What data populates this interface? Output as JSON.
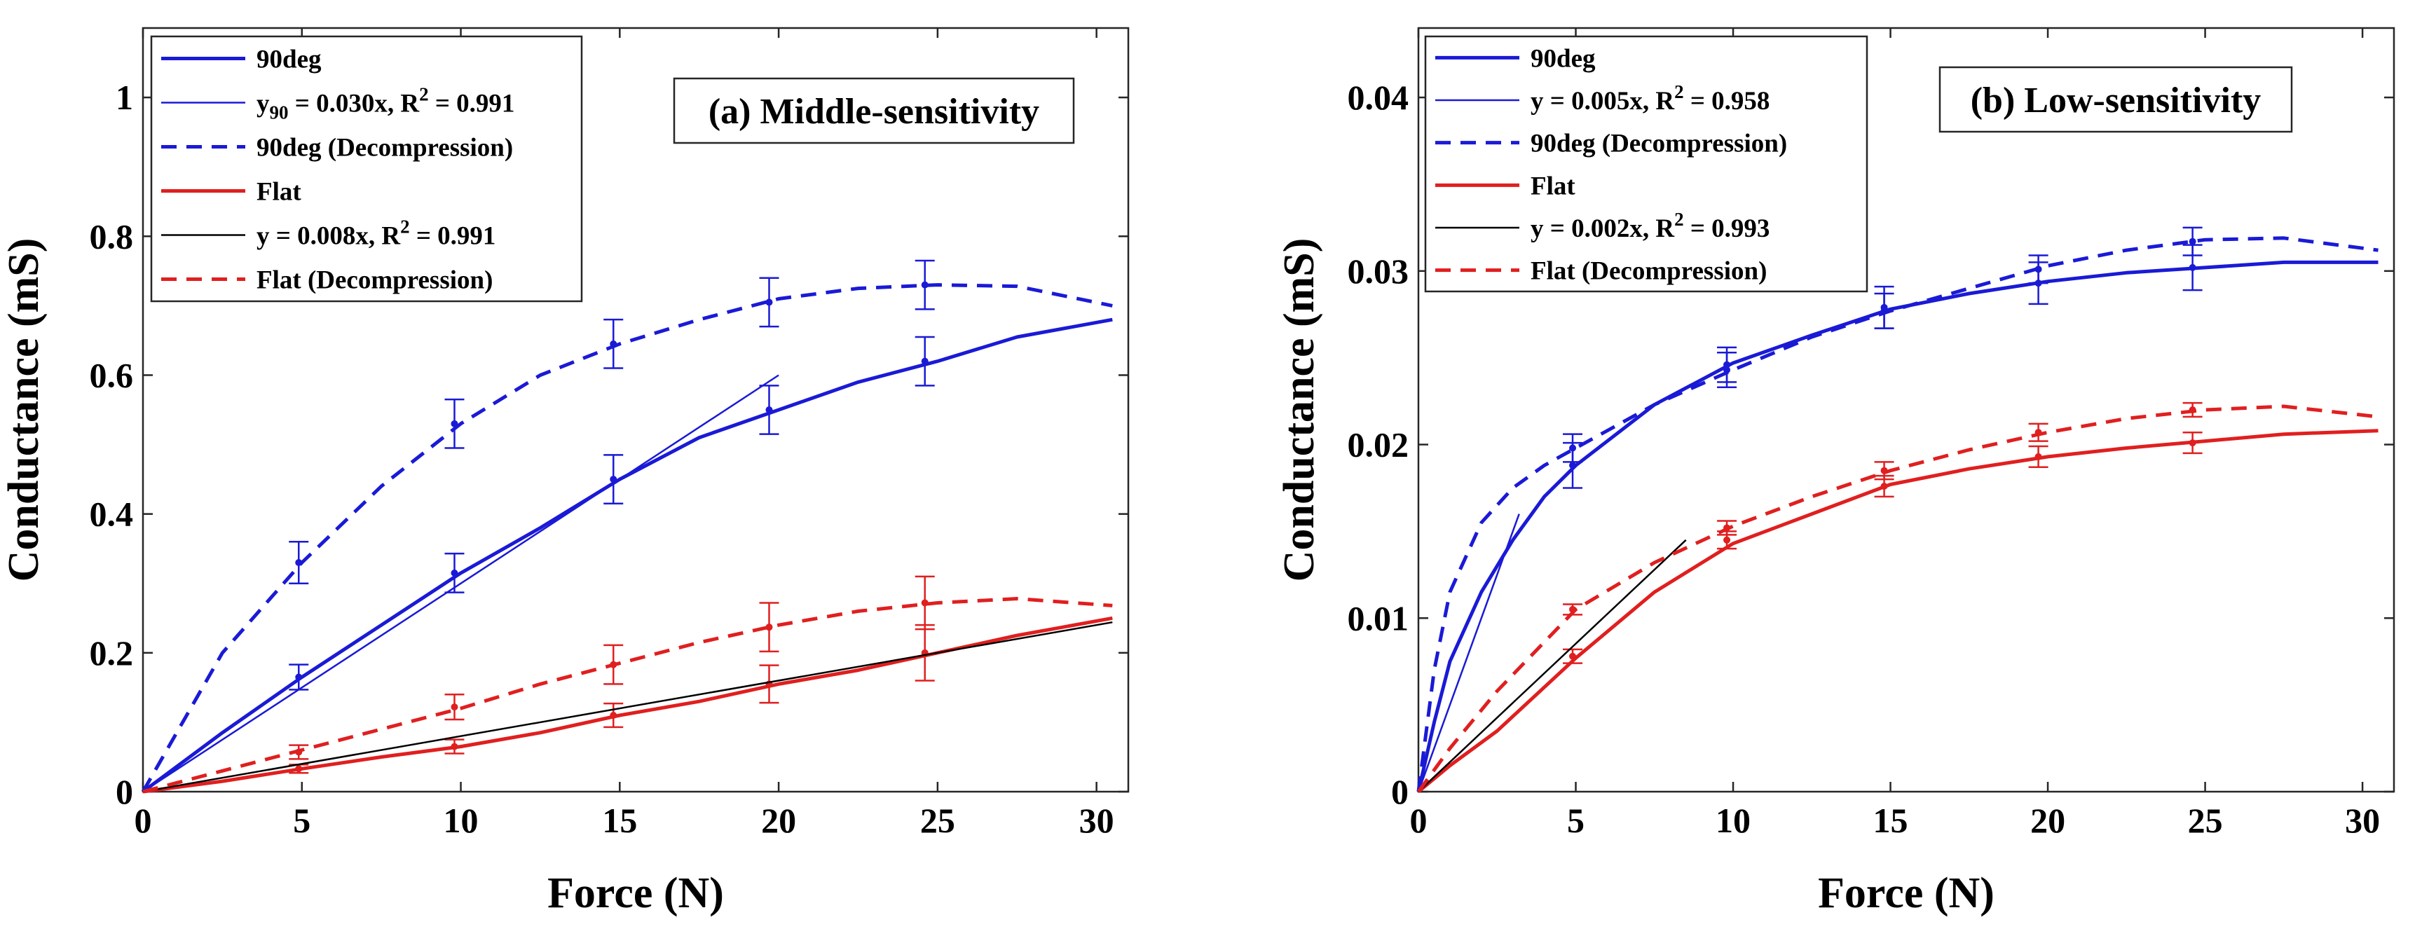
{
  "chart_data": [
    {
      "type": "line",
      "title": "(a) Middle-sensitivity",
      "xlabel": "Force (N)",
      "ylabel": "Conductance (mS)",
      "xlim": [
        0,
        31
      ],
      "ylim": [
        0,
        1.1
      ],
      "xticks": [
        0,
        5,
        10,
        15,
        20,
        25,
        30
      ],
      "yticks": [
        0,
        0.2,
        0.4,
        0.6,
        0.8,
        1
      ],
      "xtick_labels": [
        "0",
        "5",
        "10",
        "15",
        "20",
        "25",
        "30"
      ],
      "ytick_labels": [
        "0",
        "0.2",
        "0.4",
        "0.6",
        "0.8",
        "1"
      ],
      "grid": false,
      "legend_position": "top-left",
      "series": [
        {
          "name": "90deg",
          "color": "#1a1ad6",
          "dash": "solid",
          "x": [
            0,
            2.5,
            5,
            7.5,
            10,
            12.5,
            15,
            17.5,
            20,
            22.5,
            25,
            27.5,
            30.5
          ],
          "y": [
            0,
            0.085,
            0.165,
            0.24,
            0.315,
            0.38,
            0.45,
            0.51,
            0.55,
            0.59,
            0.62,
            0.655,
            0.68
          ],
          "markers": {
            "x": [
              4.9,
              9.8,
              14.8,
              19.7,
              24.6
            ],
            "y": [
              0.165,
              0.315,
              0.45,
              0.55,
              0.62
            ],
            "err": [
              0.018,
              0.028,
              0.035,
              0.035,
              0.035
            ]
          }
        },
        {
          "name": "y_90 = 0.030x, R^2 = 0.991",
          "legend_text": "= 0.030x, R",
          "legend_prefix": "y",
          "legend_sub": "90",
          "legend_sup": "2",
          "legend_suffix": " = 0.991",
          "color": "#1a1ad6",
          "dash": "solid",
          "thin": true,
          "x": [
            0,
            20
          ],
          "y": [
            0,
            0.6
          ]
        },
        {
          "name": "90deg (Decompression)",
          "color": "#1a1ad6",
          "dash": "dashed",
          "x": [
            0,
            2.5,
            5,
            7.5,
            10,
            12.5,
            15,
            17.5,
            20,
            22.5,
            25,
            27.5,
            30.5
          ],
          "y": [
            0,
            0.2,
            0.33,
            0.44,
            0.53,
            0.6,
            0.645,
            0.68,
            0.71,
            0.725,
            0.73,
            0.728,
            0.7
          ],
          "markers": {
            "x": [
              4.9,
              9.8,
              14.8,
              19.7,
              24.6
            ],
            "y": [
              0.33,
              0.53,
              0.645,
              0.705,
              0.73
            ],
            "err": [
              0.03,
              0.035,
              0.035,
              0.035,
              0.035
            ]
          }
        },
        {
          "name": "Flat",
          "color": "#e01f1f",
          "dash": "solid",
          "x": [
            0,
            2.5,
            5,
            7.5,
            10,
            12.5,
            15,
            17.5,
            20,
            22.5,
            25,
            27.5,
            30.5
          ],
          "y": [
            0,
            0.015,
            0.033,
            0.05,
            0.065,
            0.085,
            0.11,
            0.13,
            0.155,
            0.175,
            0.2,
            0.225,
            0.25
          ],
          "markers": {
            "x": [
              4.9,
              9.8,
              14.8,
              19.7,
              24.6
            ],
            "y": [
              0.033,
              0.065,
              0.11,
              0.155,
              0.2
            ],
            "err": [
              0.006,
              0.01,
              0.017,
              0.027,
              0.04
            ]
          }
        },
        {
          "name": "y = 0.008x, R^2 = 0.991",
          "legend_text": "y = 0.008x, R",
          "legend_sup": "2",
          "legend_suffix": " = 0.991",
          "color": "#000000",
          "dash": "solid",
          "thin": true,
          "x": [
            0,
            30.5
          ],
          "y": [
            0,
            0.244
          ]
        },
        {
          "name": "Flat (Decompression)",
          "color": "#e01f1f",
          "dash": "dashed",
          "x": [
            0,
            2.5,
            5,
            7.5,
            10,
            12.5,
            15,
            17.5,
            20,
            22.5,
            25,
            27.5,
            30.5
          ],
          "y": [
            0,
            0.03,
            0.06,
            0.09,
            0.12,
            0.155,
            0.185,
            0.215,
            0.24,
            0.26,
            0.272,
            0.278,
            0.268
          ],
          "markers": {
            "x": [
              4.9,
              9.8,
              14.8,
              19.7,
              24.6
            ],
            "y": [
              0.057,
              0.122,
              0.183,
              0.237,
              0.272
            ],
            "err": [
              0.01,
              0.018,
              0.028,
              0.035,
              0.038
            ]
          }
        }
      ]
    },
    {
      "type": "line",
      "title": "(b) Low-sensitivity",
      "xlabel": "Force (N)",
      "ylabel": "Conductance (mS)",
      "xlim": [
        0,
        31
      ],
      "ylim": [
        0,
        0.044
      ],
      "xticks": [
        0,
        5,
        10,
        15,
        20,
        25,
        30
      ],
      "yticks": [
        0,
        0.01,
        0.02,
        0.03,
        0.04
      ],
      "xtick_labels": [
        "0",
        "5",
        "10",
        "15",
        "20",
        "25",
        "30"
      ],
      "ytick_labels": [
        "0",
        "0.01",
        "0.02",
        "0.03",
        "0.04"
      ],
      "grid": false,
      "legend_position": "top-left",
      "series": [
        {
          "name": "90deg",
          "color": "#1a1ad6",
          "dash": "solid",
          "x": [
            0,
            0.5,
            1,
            2,
            3,
            4,
            5,
            7.5,
            10,
            12.5,
            15,
            17.5,
            20,
            22.5,
            25,
            27.5,
            30.5
          ],
          "y": [
            0,
            0.004,
            0.0075,
            0.0115,
            0.0145,
            0.017,
            0.0188,
            0.0223,
            0.0247,
            0.0263,
            0.0278,
            0.0287,
            0.0294,
            0.0299,
            0.0302,
            0.0305,
            0.0305
          ],
          "markers": {
            "x": [
              4.9,
              9.8,
              14.8,
              19.7,
              24.6
            ],
            "y": [
              0.0188,
              0.0246,
              0.0279,
              0.0293,
              0.0302
            ],
            "err": [
              0.0013,
              0.001,
              0.0012,
              0.0012,
              0.0013
            ]
          }
        },
        {
          "name": "y = 0.005x, R^2 = 0.958",
          "legend_text": "y = 0.005x, R",
          "legend_sup": "2",
          "legend_suffix": " = 0.958",
          "color": "#1a1ad6",
          "dash": "solid",
          "thin": true,
          "x": [
            0,
            3.2
          ],
          "y": [
            0,
            0.016
          ]
        },
        {
          "name": "90deg (Decompression)",
          "color": "#1a1ad6",
          "dash": "dashed",
          "x": [
            0,
            0.5,
            1,
            2,
            3,
            4,
            5,
            7.5,
            10,
            12.5,
            15,
            17.5,
            20,
            22.5,
            25,
            27.5,
            30.5
          ],
          "y": [
            0,
            0.007,
            0.0115,
            0.0155,
            0.0175,
            0.0188,
            0.0198,
            0.0223,
            0.0243,
            0.0262,
            0.0277,
            0.029,
            0.0303,
            0.0312,
            0.0318,
            0.0319,
            0.0312
          ],
          "markers": {
            "x": [
              4.9,
              9.8,
              14.8,
              19.7,
              24.6
            ],
            "y": [
              0.0198,
              0.0243,
              0.0277,
              0.0301,
              0.0317
            ],
            "err": [
              0.0008,
              0.001,
              0.001,
              0.0008,
              0.0008
            ]
          }
        },
        {
          "name": "Flat",
          "color": "#e01f1f",
          "dash": "solid",
          "x": [
            0,
            1,
            2.5,
            5,
            7.5,
            10,
            12.5,
            15,
            17.5,
            20,
            22.5,
            25,
            27.5,
            30.5
          ],
          "y": [
            0,
            0.0015,
            0.0035,
            0.0077,
            0.0115,
            0.0143,
            0.016,
            0.0177,
            0.0186,
            0.0193,
            0.0198,
            0.0202,
            0.0206,
            0.0208
          ],
          "markers": {
            "x": [
              4.9,
              9.8,
              14.8,
              19.7,
              24.6
            ],
            "y": [
              0.0078,
              0.0145,
              0.0176,
              0.0193,
              0.0201
            ],
            "err": [
              0.0004,
              0.0005,
              0.0006,
              0.0006,
              0.0006
            ]
          }
        },
        {
          "name": "y = 0.002x, R^2 = 0.993",
          "legend_text": "y = 0.002x, R",
          "legend_sup": "2",
          "legend_suffix": " = 0.993",
          "color": "#000000",
          "dash": "solid",
          "thin": true,
          "x": [
            0,
            8.5
          ],
          "y": [
            0,
            0.0145
          ]
        },
        {
          "name": "Flat (Decompression)",
          "color": "#e01f1f",
          "dash": "dashed",
          "x": [
            0,
            1,
            2.5,
            5,
            7.5,
            10,
            12.5,
            15,
            17.5,
            20,
            22.5,
            25,
            27.5,
            30.5
          ],
          "y": [
            0,
            0.0025,
            0.0058,
            0.0105,
            0.0132,
            0.0153,
            0.017,
            0.0185,
            0.0197,
            0.0207,
            0.0215,
            0.022,
            0.0222,
            0.0216
          ],
          "markers": {
            "x": [
              4.9,
              9.8,
              14.8,
              19.7,
              24.6
            ],
            "y": [
              0.0105,
              0.0152,
              0.0185,
              0.0207,
              0.022
            ],
            "err": [
              0.0003,
              0.0004,
              0.0005,
              0.0005,
              0.0004
            ]
          }
        }
      ]
    }
  ]
}
